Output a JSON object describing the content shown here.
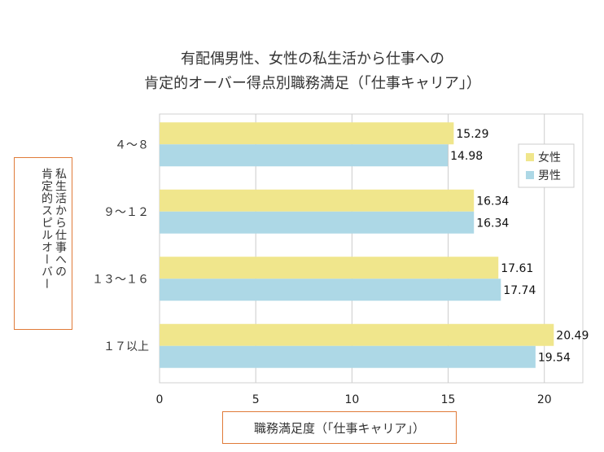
{
  "chart_data": {
    "type": "bar",
    "orientation": "horizontal",
    "title_lines": [
      "有配偶男性、女性の私生活から仕事への",
      "肯定的オーバー得点別職務満足（「仕事キャリア」）"
    ],
    "xlabel": "職務満足度（「仕事キャリア」）",
    "ylabel": "私生活から仕事への\n肯定的スピルオーバー",
    "categories": [
      "４～８",
      "９～１２",
      "１３～１６",
      "１７以上"
    ],
    "xlim": [
      0,
      22
    ],
    "xticks": [
      0,
      5,
      10,
      15,
      20
    ],
    "grid": true,
    "legend_position": "right",
    "series": [
      {
        "name": "女性",
        "color": "#f0e68c",
        "values": [
          15.29,
          16.34,
          17.61,
          20.49
        ]
      },
      {
        "name": "男性",
        "color": "#add8e6",
        "values": [
          14.98,
          16.34,
          17.74,
          19.54
        ]
      }
    ]
  }
}
